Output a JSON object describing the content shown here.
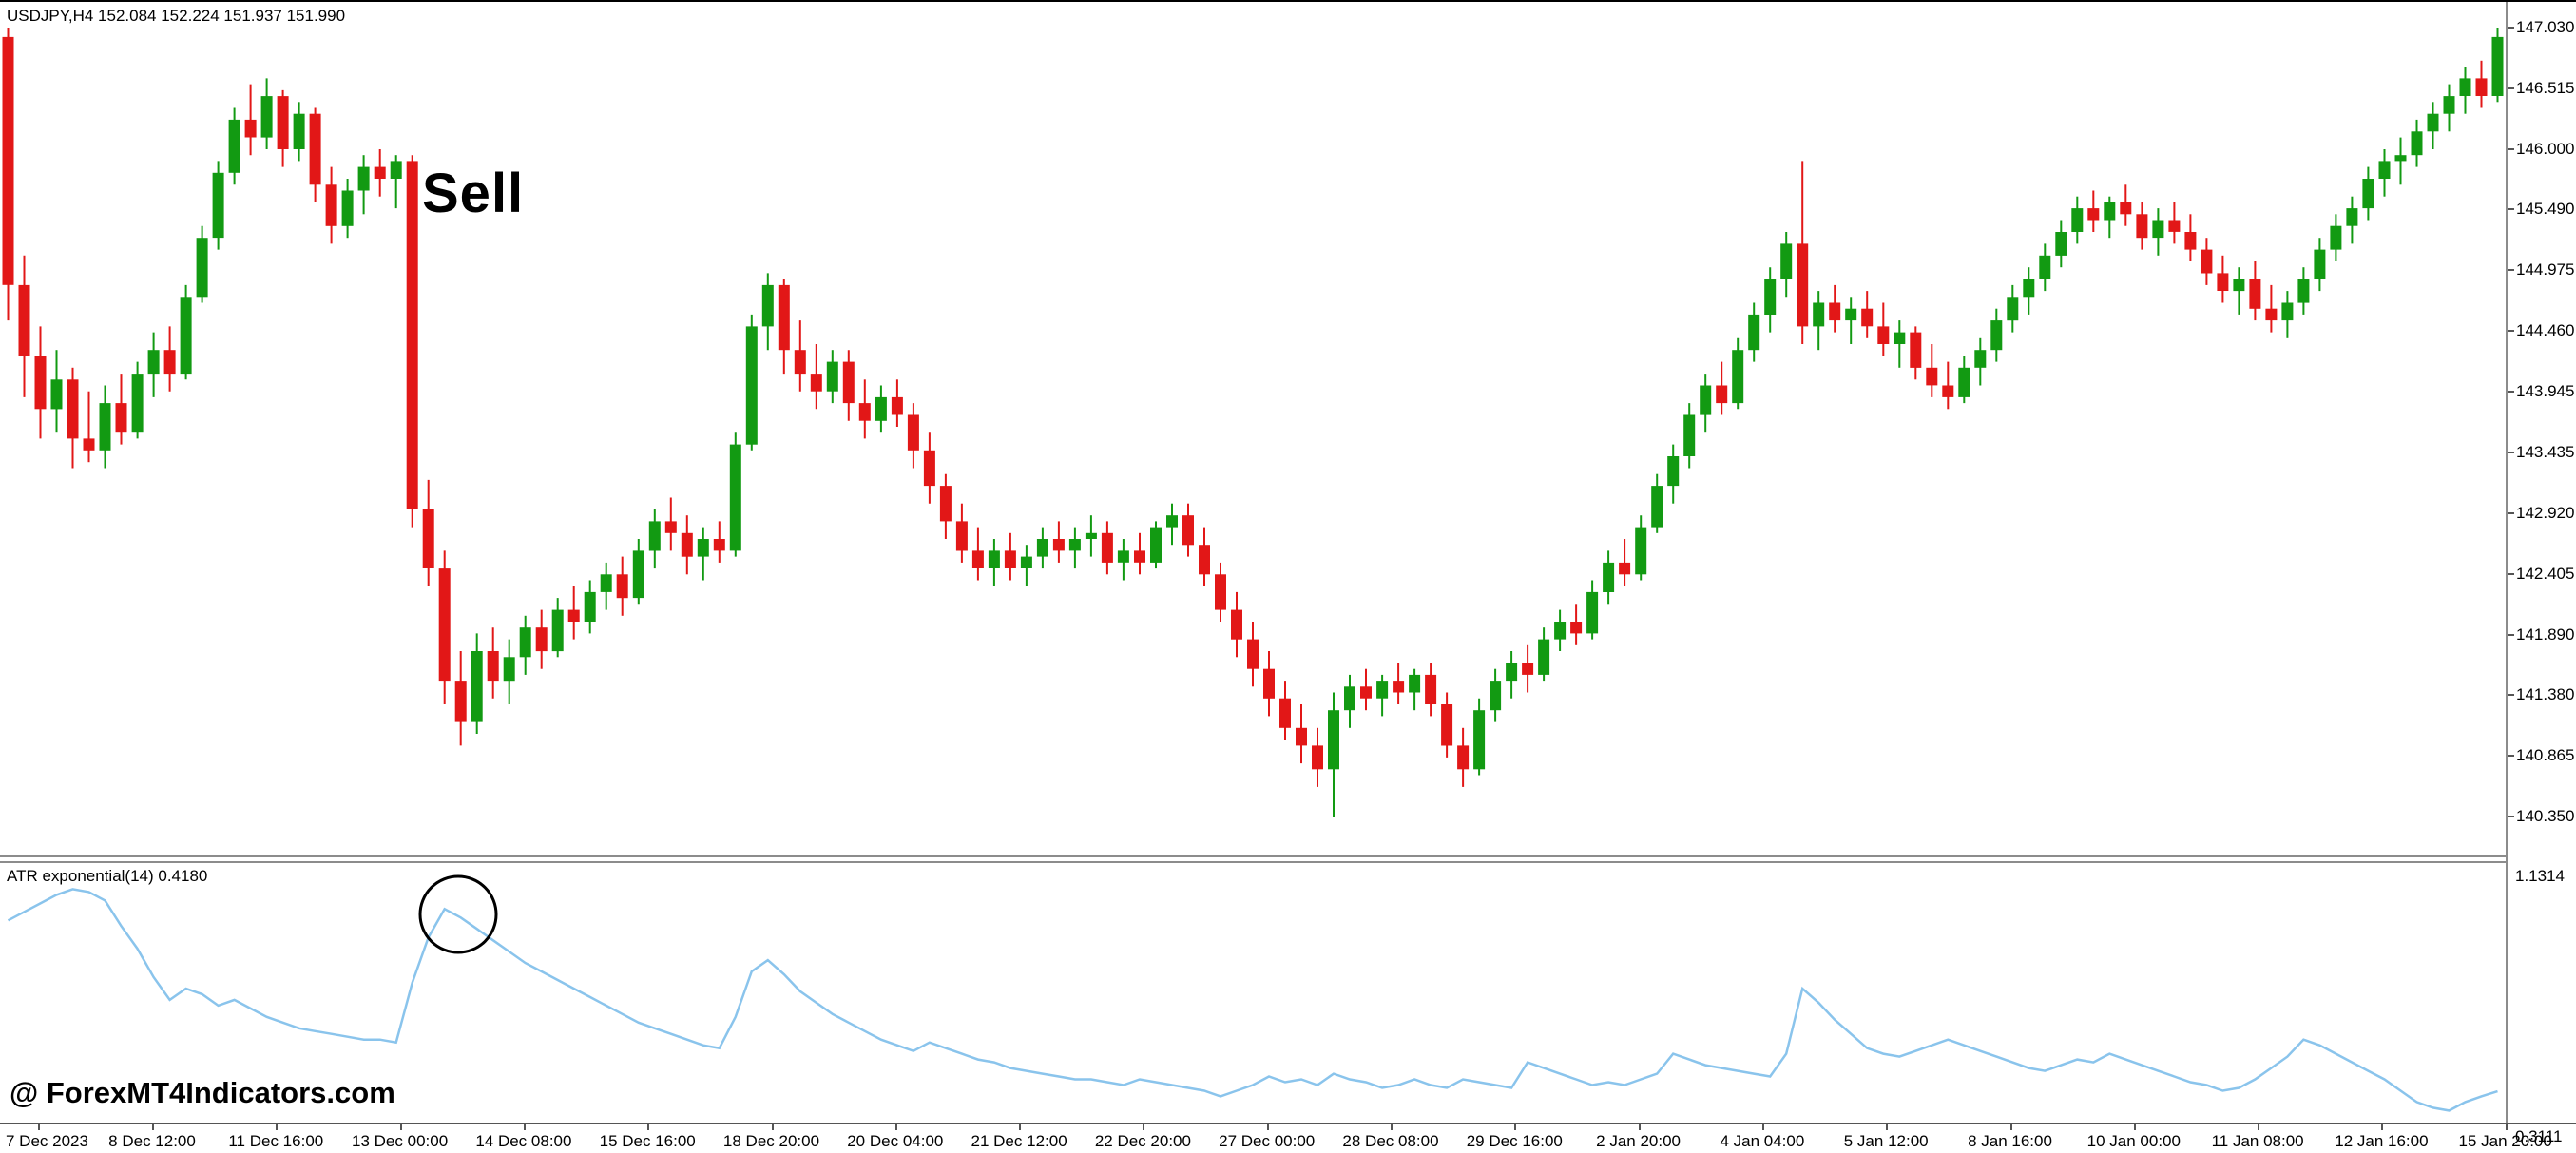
{
  "header": {
    "title": "USDJPY,H4  152.084 152.224 151.937 151.990"
  },
  "annotations": {
    "sell_label": "Sell"
  },
  "watermark": "@ ForexMT4Indicators.com",
  "indicator_panel": {
    "label": "ATR exponential(14) 0.4180",
    "max_label": "1.1314",
    "min_label": "0.3111"
  },
  "colors": {
    "up": "#129a12",
    "down": "#e21717",
    "atr_line": "#8ac4ec",
    "separator": "#8c8c8c",
    "background": "#ffffff"
  },
  "chart_data": [
    {
      "type": "candlestick",
      "title": "USDJPY H4 candlestick chart",
      "symbol": "USDJPY",
      "timeframe": "H4",
      "ylim": [
        140.35,
        147.03
      ],
      "up_color": "#129a12",
      "down_color": "#e21717",
      "y_tick_labels": [
        "147.030",
        "146.515",
        "146.000",
        "145.490",
        "144.975",
        "144.460",
        "143.945",
        "143.435",
        "142.920",
        "142.405",
        "141.890",
        "141.380",
        "140.865",
        "140.350"
      ],
      "x_tick_labels": [
        "7 Dec 2023",
        "8 Dec 12:00",
        "11 Dec 16:00",
        "13 Dec 00:00",
        "14 Dec 08:00",
        "15 Dec 16:00",
        "18 Dec 20:00",
        "20 Dec 04:00",
        "21 Dec 12:00",
        "22 Dec 20:00",
        "27 Dec 00:00",
        "28 Dec 08:00",
        "29 Dec 16:00",
        "2 Jan 20:00",
        "4 Jan 04:00",
        "5 Jan 12:00",
        "8 Jan 16:00",
        "10 Jan 00:00",
        "11 Jan 08:00",
        "12 Jan 16:00",
        "15 Jan 20:00"
      ],
      "ohlc": [
        [
          146.95,
          147.03,
          144.55,
          144.85
        ],
        [
          144.85,
          145.1,
          143.9,
          144.25
        ],
        [
          144.25,
          144.5,
          143.55,
          143.8
        ],
        [
          143.8,
          144.3,
          143.6,
          144.05
        ],
        [
          144.05,
          144.15,
          143.3,
          143.55
        ],
        [
          143.55,
          143.95,
          143.35,
          143.45
        ],
        [
          143.45,
          144.0,
          143.3,
          143.85
        ],
        [
          143.85,
          144.1,
          143.5,
          143.6
        ],
        [
          143.6,
          144.2,
          143.55,
          144.1
        ],
        [
          144.1,
          144.45,
          143.9,
          144.3
        ],
        [
          144.3,
          144.5,
          143.95,
          144.1
        ],
        [
          144.1,
          144.85,
          144.05,
          144.75
        ],
        [
          144.75,
          145.35,
          144.7,
          145.25
        ],
        [
          145.25,
          145.9,
          145.15,
          145.8
        ],
        [
          145.8,
          146.35,
          145.7,
          146.25
        ],
        [
          146.25,
          146.55,
          145.95,
          146.1
        ],
        [
          146.1,
          146.6,
          146.0,
          146.45
        ],
        [
          146.45,
          146.5,
          145.85,
          146.0
        ],
        [
          146.0,
          146.4,
          145.9,
          146.3
        ],
        [
          146.3,
          146.35,
          145.55,
          145.7
        ],
        [
          145.7,
          145.85,
          145.2,
          145.35
        ],
        [
          145.35,
          145.75,
          145.25,
          145.65
        ],
        [
          145.65,
          145.95,
          145.45,
          145.85
        ],
        [
          145.85,
          146.0,
          145.6,
          145.75
        ],
        [
          145.75,
          145.95,
          145.5,
          145.9
        ],
        [
          145.9,
          145.95,
          142.8,
          142.95
        ],
        [
          142.95,
          143.2,
          142.3,
          142.45
        ],
        [
          142.45,
          142.6,
          141.3,
          141.5
        ],
        [
          141.5,
          141.75,
          140.95,
          141.15
        ],
        [
          141.15,
          141.9,
          141.05,
          141.75
        ],
        [
          141.75,
          141.95,
          141.35,
          141.5
        ],
        [
          141.5,
          141.85,
          141.3,
          141.7
        ],
        [
          141.7,
          142.05,
          141.55,
          141.95
        ],
        [
          141.95,
          142.1,
          141.6,
          141.75
        ],
        [
          141.75,
          142.2,
          141.7,
          142.1
        ],
        [
          142.1,
          142.3,
          141.85,
          142.0
        ],
        [
          142.0,
          142.35,
          141.9,
          142.25
        ],
        [
          142.25,
          142.5,
          142.1,
          142.4
        ],
        [
          142.4,
          142.55,
          142.05,
          142.2
        ],
        [
          142.2,
          142.7,
          142.15,
          142.6
        ],
        [
          142.6,
          142.95,
          142.45,
          142.85
        ],
        [
          142.85,
          143.05,
          142.6,
          142.75
        ],
        [
          142.75,
          142.9,
          142.4,
          142.55
        ],
        [
          142.55,
          142.8,
          142.35,
          142.7
        ],
        [
          142.7,
          142.85,
          142.5,
          142.6
        ],
        [
          142.6,
          143.6,
          142.55,
          143.5
        ],
        [
          143.5,
          144.6,
          143.45,
          144.5
        ],
        [
          144.5,
          144.95,
          144.3,
          144.85
        ],
        [
          144.85,
          144.9,
          144.1,
          144.3
        ],
        [
          144.3,
          144.55,
          143.95,
          144.1
        ],
        [
          144.1,
          144.35,
          143.8,
          143.95
        ],
        [
          143.95,
          144.3,
          143.85,
          144.2
        ],
        [
          144.2,
          144.3,
          143.7,
          143.85
        ],
        [
          143.85,
          144.05,
          143.55,
          143.7
        ],
        [
          143.7,
          144.0,
          143.6,
          143.9
        ],
        [
          143.9,
          144.05,
          143.65,
          143.75
        ],
        [
          143.75,
          143.85,
          143.3,
          143.45
        ],
        [
          143.45,
          143.6,
          143.0,
          143.15
        ],
        [
          143.15,
          143.25,
          142.7,
          142.85
        ],
        [
          142.85,
          143.0,
          142.5,
          142.6
        ],
        [
          142.6,
          142.8,
          142.35,
          142.45
        ],
        [
          142.45,
          142.7,
          142.3,
          142.6
        ],
        [
          142.6,
          142.75,
          142.35,
          142.45
        ],
        [
          142.45,
          142.65,
          142.3,
          142.55
        ],
        [
          142.55,
          142.8,
          142.45,
          142.7
        ],
        [
          142.7,
          142.85,
          142.5,
          142.6
        ],
        [
          142.6,
          142.8,
          142.45,
          142.7
        ],
        [
          142.7,
          142.9,
          142.55,
          142.75
        ],
        [
          142.75,
          142.85,
          142.4,
          142.5
        ],
        [
          142.5,
          142.7,
          142.35,
          142.6
        ],
        [
          142.6,
          142.75,
          142.4,
          142.5
        ],
        [
          142.5,
          142.85,
          142.45,
          142.8
        ],
        [
          142.8,
          143.0,
          142.65,
          142.9
        ],
        [
          142.9,
          143.0,
          142.55,
          142.65
        ],
        [
          142.65,
          142.8,
          142.3,
          142.4
        ],
        [
          142.4,
          142.5,
          142.0,
          142.1
        ],
        [
          142.1,
          142.25,
          141.7,
          141.85
        ],
        [
          141.85,
          142.0,
          141.45,
          141.6
        ],
        [
          141.6,
          141.75,
          141.2,
          141.35
        ],
        [
          141.35,
          141.5,
          141.0,
          141.1
        ],
        [
          141.1,
          141.3,
          140.8,
          140.95
        ],
        [
          140.95,
          141.1,
          140.6,
          140.75
        ],
        [
          140.75,
          141.4,
          140.35,
          141.25
        ],
        [
          141.25,
          141.55,
          141.1,
          141.45
        ],
        [
          141.45,
          141.6,
          141.25,
          141.35
        ],
        [
          141.35,
          141.55,
          141.2,
          141.5
        ],
        [
          141.5,
          141.65,
          141.3,
          141.4
        ],
        [
          141.4,
          141.6,
          141.25,
          141.55
        ],
        [
          141.55,
          141.65,
          141.2,
          141.3
        ],
        [
          141.3,
          141.4,
          140.85,
          140.95
        ],
        [
          140.95,
          141.1,
          140.6,
          140.75
        ],
        [
          140.75,
          141.35,
          140.7,
          141.25
        ],
        [
          141.25,
          141.6,
          141.15,
          141.5
        ],
        [
          141.5,
          141.75,
          141.35,
          141.65
        ],
        [
          141.65,
          141.8,
          141.4,
          141.55
        ],
        [
          141.55,
          141.95,
          141.5,
          141.85
        ],
        [
          141.85,
          142.1,
          141.75,
          142.0
        ],
        [
          142.0,
          142.15,
          141.8,
          141.9
        ],
        [
          141.9,
          142.35,
          141.85,
          142.25
        ],
        [
          142.25,
          142.6,
          142.15,
          142.5
        ],
        [
          142.5,
          142.7,
          142.3,
          142.4
        ],
        [
          142.4,
          142.9,
          142.35,
          142.8
        ],
        [
          142.8,
          143.25,
          142.75,
          143.15
        ],
        [
          143.15,
          143.5,
          143.0,
          143.4
        ],
        [
          143.4,
          143.85,
          143.3,
          143.75
        ],
        [
          143.75,
          144.1,
          143.6,
          144.0
        ],
        [
          144.0,
          144.2,
          143.75,
          143.85
        ],
        [
          143.85,
          144.4,
          143.8,
          144.3
        ],
        [
          144.3,
          144.7,
          144.2,
          144.6
        ],
        [
          144.6,
          145.0,
          144.45,
          144.9
        ],
        [
          144.9,
          145.3,
          144.75,
          145.2
        ],
        [
          145.2,
          145.9,
          144.35,
          144.5
        ],
        [
          144.5,
          144.8,
          144.3,
          144.7
        ],
        [
          144.7,
          144.85,
          144.45,
          144.55
        ],
        [
          144.55,
          144.75,
          144.35,
          144.65
        ],
        [
          144.65,
          144.8,
          144.4,
          144.5
        ],
        [
          144.5,
          144.7,
          144.25,
          144.35
        ],
        [
          144.35,
          144.55,
          144.15,
          144.45
        ],
        [
          144.45,
          144.5,
          144.05,
          144.15
        ],
        [
          144.15,
          144.35,
          143.9,
          144.0
        ],
        [
          144.0,
          144.2,
          143.8,
          143.9
        ],
        [
          143.9,
          144.25,
          143.85,
          144.15
        ],
        [
          144.15,
          144.4,
          144.0,
          144.3
        ],
        [
          144.3,
          144.65,
          144.2,
          144.55
        ],
        [
          144.55,
          144.85,
          144.45,
          144.75
        ],
        [
          144.75,
          145.0,
          144.6,
          144.9
        ],
        [
          144.9,
          145.2,
          144.8,
          145.1
        ],
        [
          145.1,
          145.4,
          145.0,
          145.3
        ],
        [
          145.3,
          145.6,
          145.2,
          145.5
        ],
        [
          145.5,
          145.65,
          145.3,
          145.4
        ],
        [
          145.4,
          145.6,
          145.25,
          145.55
        ],
        [
          145.55,
          145.7,
          145.35,
          145.45
        ],
        [
          145.45,
          145.55,
          145.15,
          145.25
        ],
        [
          145.25,
          145.5,
          145.1,
          145.4
        ],
        [
          145.4,
          145.55,
          145.2,
          145.3
        ],
        [
          145.3,
          145.45,
          145.05,
          145.15
        ],
        [
          145.15,
          145.25,
          144.85,
          144.95
        ],
        [
          144.95,
          145.1,
          144.7,
          144.8
        ],
        [
          144.8,
          145.0,
          144.6,
          144.9
        ],
        [
          144.9,
          145.05,
          144.55,
          144.65
        ],
        [
          144.65,
          144.85,
          144.45,
          144.55
        ],
        [
          144.55,
          144.8,
          144.4,
          144.7
        ],
        [
          144.7,
          145.0,
          144.6,
          144.9
        ],
        [
          144.9,
          145.25,
          144.8,
          145.15
        ],
        [
          145.15,
          145.45,
          145.05,
          145.35
        ],
        [
          145.35,
          145.6,
          145.2,
          145.5
        ],
        [
          145.5,
          145.85,
          145.4,
          145.75
        ],
        [
          145.75,
          146.0,
          145.6,
          145.9
        ],
        [
          145.9,
          146.1,
          145.7,
          145.95
        ],
        [
          145.95,
          146.25,
          145.85,
          146.15
        ],
        [
          146.15,
          146.4,
          146.0,
          146.3
        ],
        [
          146.3,
          146.55,
          146.15,
          146.45
        ],
        [
          146.45,
          146.7,
          146.3,
          146.6
        ],
        [
          146.6,
          146.75,
          146.35,
          146.45
        ],
        [
          146.45,
          147.03,
          146.4,
          146.95
        ]
      ]
    },
    {
      "type": "line",
      "title": "ATR exponential(14)",
      "current_value": 0.418,
      "ylim": [
        0.3111,
        1.1314
      ],
      "line_color": "#8ac4ec",
      "values": [
        1.02,
        1.05,
        1.08,
        1.11,
        1.13,
        1.12,
        1.09,
        1.0,
        0.92,
        0.82,
        0.74,
        0.78,
        0.76,
        0.72,
        0.74,
        0.71,
        0.68,
        0.66,
        0.64,
        0.63,
        0.62,
        0.61,
        0.6,
        0.6,
        0.59,
        0.8,
        0.96,
        1.06,
        1.03,
        0.99,
        0.95,
        0.91,
        0.87,
        0.84,
        0.81,
        0.78,
        0.75,
        0.72,
        0.69,
        0.66,
        0.64,
        0.62,
        0.6,
        0.58,
        0.57,
        0.68,
        0.84,
        0.88,
        0.83,
        0.77,
        0.73,
        0.69,
        0.66,
        0.63,
        0.6,
        0.58,
        0.56,
        0.59,
        0.57,
        0.55,
        0.53,
        0.52,
        0.5,
        0.49,
        0.48,
        0.47,
        0.46,
        0.46,
        0.45,
        0.44,
        0.46,
        0.45,
        0.44,
        0.43,
        0.42,
        0.4,
        0.42,
        0.44,
        0.47,
        0.45,
        0.46,
        0.44,
        0.48,
        0.46,
        0.45,
        0.43,
        0.44,
        0.46,
        0.44,
        0.43,
        0.46,
        0.45,
        0.44,
        0.43,
        0.52,
        0.5,
        0.48,
        0.46,
        0.44,
        0.45,
        0.44,
        0.46,
        0.48,
        0.55,
        0.53,
        0.51,
        0.5,
        0.49,
        0.48,
        0.47,
        0.55,
        0.78,
        0.73,
        0.67,
        0.62,
        0.57,
        0.55,
        0.54,
        0.56,
        0.58,
        0.6,
        0.58,
        0.56,
        0.54,
        0.52,
        0.5,
        0.49,
        0.51,
        0.53,
        0.52,
        0.55,
        0.53,
        0.51,
        0.49,
        0.47,
        0.45,
        0.44,
        0.42,
        0.43,
        0.46,
        0.5,
        0.54,
        0.6,
        0.58,
        0.55,
        0.52,
        0.49,
        0.46,
        0.42,
        0.38,
        0.36,
        0.35,
        0.38,
        0.4,
        0.418
      ]
    }
  ]
}
